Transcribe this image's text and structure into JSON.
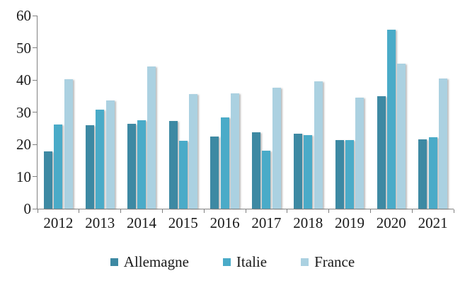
{
  "chart_data": {
    "type": "bar",
    "title": "",
    "xlabel": "",
    "ylabel": "",
    "categories": [
      "2012",
      "2013",
      "2014",
      "2015",
      "2016",
      "2017",
      "2018",
      "2019",
      "2020",
      "2021"
    ],
    "series": [
      {
        "name": "Allemagne",
        "color": "#3D89A3",
        "values": [
          17.8,
          26.0,
          26.3,
          27.2,
          22.4,
          23.8,
          23.3,
          21.4,
          35.0,
          21.6
        ]
      },
      {
        "name": "Italie",
        "color": "#4AABC8",
        "values": [
          26.2,
          30.8,
          27.5,
          21.2,
          28.4,
          18.1,
          22.9,
          21.4,
          55.5,
          22.3
        ]
      },
      {
        "name": "France",
        "color": "#ABD1E1",
        "values": [
          40.3,
          33.7,
          44.2,
          35.5,
          35.9,
          37.5,
          39.5,
          34.5,
          45.0,
          40.4
        ]
      }
    ],
    "ylim": [
      0,
      60
    ],
    "yticks": [
      0,
      10,
      20,
      30,
      40,
      50,
      60
    ],
    "grid": false,
    "legend_position": "bottom",
    "axis_color": "#808080",
    "text_color": "#1a1a1a"
  }
}
